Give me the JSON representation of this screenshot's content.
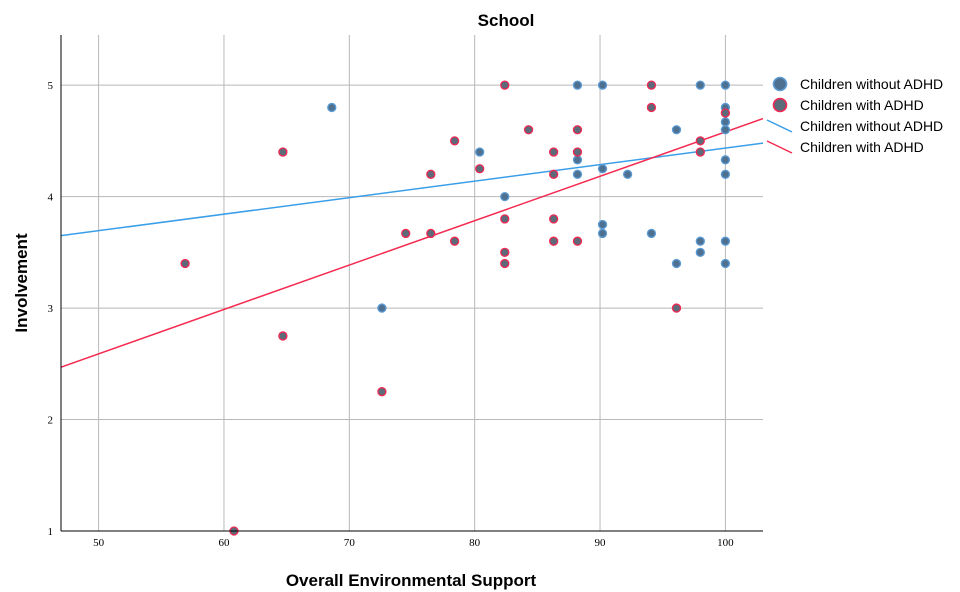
{
  "chart_data": {
    "type": "scatter",
    "title": "School",
    "xlabel": "Overall Environmental Support",
    "ylabel": "Involvement",
    "xlim": [
      47,
      103
    ],
    "ylim": [
      1,
      5.45
    ],
    "xticks": [
      50,
      60,
      70,
      80,
      90,
      100
    ],
    "yticks": [
      1,
      2,
      3,
      4,
      5
    ],
    "grid": true,
    "legend_position": "right",
    "colors": {
      "without_fill": "#4f7191",
      "without_edge": "#5b9bd5",
      "with_fill": "#5c6a7a",
      "with_edge": "#f22853",
      "without_line": "#3a9fe8",
      "with_line": "#f52a50"
    },
    "legend": [
      {
        "label": "Children without ADHD",
        "kind": "marker",
        "series": "without"
      },
      {
        "label": "Children with ADHD",
        "kind": "marker",
        "series": "with"
      },
      {
        "label": "Children without ADHD",
        "kind": "line",
        "series": "without"
      },
      {
        "label": "Children with ADHD",
        "kind": "line",
        "series": "with"
      }
    ],
    "series": [
      {
        "name": "Children without ADHD",
        "points": [
          [
            68.6,
            4.8
          ],
          [
            72.6,
            3.0
          ],
          [
            80.4,
            4.4
          ],
          [
            82.4,
            4.0
          ],
          [
            88.2,
            5.0
          ],
          [
            88.2,
            4.2
          ],
          [
            88.2,
            4.33
          ],
          [
            90.2,
            5.0
          ],
          [
            90.2,
            4.25
          ],
          [
            90.2,
            3.75
          ],
          [
            90.2,
            3.67
          ],
          [
            92.2,
            4.2
          ],
          [
            94.1,
            3.67
          ],
          [
            96.1,
            4.6
          ],
          [
            96.1,
            3.4
          ],
          [
            98.0,
            5.0
          ],
          [
            98.0,
            3.6
          ],
          [
            98.0,
            3.5
          ],
          [
            100,
            5.0
          ],
          [
            100,
            4.8
          ],
          [
            100,
            4.67
          ],
          [
            100,
            4.6
          ],
          [
            100,
            4.33
          ],
          [
            100,
            4.2
          ],
          [
            100,
            3.6
          ],
          [
            100,
            3.4
          ]
        ],
        "fit": {
          "x": [
            47,
            103
          ],
          "y": [
            3.65,
            4.48
          ]
        }
      },
      {
        "name": "Children with ADHD",
        "points": [
          [
            56.9,
            3.4
          ],
          [
            60.8,
            1.0
          ],
          [
            64.7,
            4.4
          ],
          [
            64.7,
            2.75
          ],
          [
            72.6,
            2.25
          ],
          [
            74.5,
            3.67
          ],
          [
            76.5,
            4.2
          ],
          [
            76.5,
            3.67
          ],
          [
            78.4,
            4.5
          ],
          [
            78.4,
            3.6
          ],
          [
            80.4,
            4.25
          ],
          [
            82.4,
            5.0
          ],
          [
            82.4,
            3.8
          ],
          [
            82.4,
            3.5
          ],
          [
            82.4,
            3.4
          ],
          [
            84.3,
            4.6
          ],
          [
            86.3,
            4.4
          ],
          [
            86.3,
            4.2
          ],
          [
            86.3,
            3.8
          ],
          [
            86.3,
            3.6
          ],
          [
            88.2,
            4.6
          ],
          [
            88.2,
            4.4
          ],
          [
            88.2,
            3.6
          ],
          [
            94.1,
            5.0
          ],
          [
            94.1,
            4.8
          ],
          [
            96.1,
            3.0
          ],
          [
            98.0,
            4.5
          ],
          [
            98.0,
            4.4
          ],
          [
            100,
            4.75
          ]
        ],
        "fit": {
          "x": [
            47,
            103
          ],
          "y": [
            2.47,
            4.7
          ]
        }
      }
    ]
  }
}
